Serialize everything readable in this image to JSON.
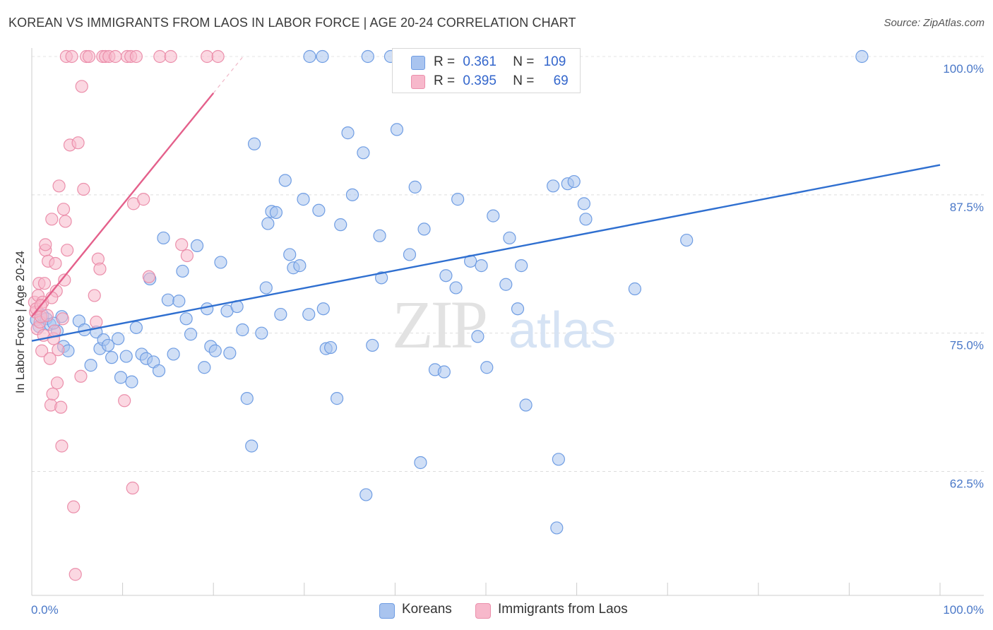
{
  "header": {
    "title": "KOREAN VS IMMIGRANTS FROM LAOS IN LABOR FORCE | AGE 20-24 CORRELATION CHART",
    "source": "Source: ZipAtlas.com"
  },
  "watermark": {
    "zip": "ZIP",
    "atlas": "atlas"
  },
  "legend_stats": [
    {
      "r_label": "R =",
      "r_value": "0.361",
      "n_label": "N =",
      "n_value": "109",
      "color": "#a9c4ef"
    },
    {
      "r_label": "R =",
      "r_value": "0.395",
      "n_label": "N =",
      "n_value": "69",
      "color": "#f7b8cb"
    }
  ],
  "chart_data": {
    "type": "scatter",
    "ylabel": "In Labor Force | Age 20-24",
    "xlim": [
      0,
      100
    ],
    "ylim": [
      51.3,
      100
    ],
    "x_tick_labels": [
      "0.0%",
      "100.0%"
    ],
    "y_ticks": [
      100,
      87.5,
      75,
      62.5
    ],
    "y_tick_labels": [
      "100.0%",
      "87.5%",
      "75.0%",
      "62.5%"
    ],
    "grid": true,
    "legend_placement": "bottom",
    "series": [
      {
        "name": "Koreans",
        "color": "#6f9de3",
        "fill": "#a9c4ef",
        "trend": {
          "x0": 0,
          "y0": 74.3,
          "x1": 100,
          "y1": 90.2
        },
        "points": [
          [
            0.5,
            76.2
          ],
          [
            0.8,
            75.6
          ],
          [
            1.2,
            76.6
          ],
          [
            1.6,
            76.3
          ],
          [
            2,
            75.8
          ],
          [
            2.8,
            75.2
          ],
          [
            3.5,
            73.8
          ],
          [
            4,
            73.4
          ],
          [
            5.2,
            76.1
          ],
          [
            5.8,
            75.3
          ],
          [
            6.5,
            72.1
          ],
          [
            7.1,
            75.1
          ],
          [
            7.5,
            73.6
          ],
          [
            7.9,
            74.4
          ],
          [
            8.4,
            73.9
          ],
          [
            8.8,
            72.8
          ],
          [
            9.5,
            74.5
          ],
          [
            9.8,
            71
          ],
          [
            10.4,
            72.9
          ],
          [
            11,
            70.6
          ],
          [
            11.5,
            75.5
          ],
          [
            12.1,
            73.1
          ],
          [
            12.6,
            72.7
          ],
          [
            13,
            79.9
          ],
          [
            13.4,
            72.4
          ],
          [
            14,
            71.6
          ],
          [
            14.5,
            83.6
          ],
          [
            15,
            78
          ],
          [
            15.6,
            73.1
          ],
          [
            16.2,
            77.9
          ],
          [
            16.6,
            80.6
          ],
          [
            17,
            76.3
          ],
          [
            17.5,
            74.9
          ],
          [
            18.2,
            82.9
          ],
          [
            19,
            71.9
          ],
          [
            19.3,
            77.2
          ],
          [
            19.7,
            73.8
          ],
          [
            20.2,
            73.4
          ],
          [
            20.8,
            81.4
          ],
          [
            21.5,
            77
          ],
          [
            21.8,
            73.2
          ],
          [
            22.6,
            77.4
          ],
          [
            23.2,
            75.3
          ],
          [
            23.7,
            69.1
          ],
          [
            24.2,
            64.8
          ],
          [
            24.5,
            92.1
          ],
          [
            25.3,
            75
          ],
          [
            25.8,
            79.1
          ],
          [
            26,
            84.9
          ],
          [
            26.4,
            86
          ],
          [
            26.9,
            85.9
          ],
          [
            27.4,
            76.7
          ],
          [
            27.9,
            88.8
          ],
          [
            28.4,
            82.1
          ],
          [
            28.8,
            80.9
          ],
          [
            29.5,
            81.1
          ],
          [
            29.9,
            87.1
          ],
          [
            30.5,
            76.7
          ],
          [
            31.6,
            86.1
          ],
          [
            32.1,
            77.2
          ],
          [
            32.4,
            73.6
          ],
          [
            32.9,
            73.7
          ],
          [
            33.6,
            69.1
          ],
          [
            34,
            84.8
          ],
          [
            34.8,
            93.1
          ],
          [
            35.3,
            87.5
          ],
          [
            36.5,
            91.3
          ],
          [
            36.8,
            60.4
          ],
          [
            37.5,
            73.9
          ],
          [
            38.3,
            83.8
          ],
          [
            38.5,
            80
          ],
          [
            39.5,
            100
          ],
          [
            40.2,
            93.4
          ],
          [
            41.1,
            100
          ],
          [
            41.6,
            82.1
          ],
          [
            42.2,
            88.2
          ],
          [
            42.8,
            63.3
          ],
          [
            43.2,
            84.4
          ],
          [
            44.4,
            71.7
          ],
          [
            45.4,
            71.5
          ],
          [
            45.6,
            80.2
          ],
          [
            46.7,
            79.1
          ],
          [
            46.9,
            87.1
          ],
          [
            48.3,
            81.5
          ],
          [
            49.1,
            74.7
          ],
          [
            49.5,
            81.1
          ],
          [
            50.1,
            71.9
          ],
          [
            50.8,
            85.6
          ],
          [
            51.3,
            100
          ],
          [
            52.2,
            79.4
          ],
          [
            52.6,
            83.6
          ],
          [
            53.5,
            77.2
          ],
          [
            53.9,
            81.1
          ],
          [
            54.4,
            68.5
          ],
          [
            57.4,
            88.3
          ],
          [
            57.8,
            57.4
          ],
          [
            58,
            63.6
          ],
          [
            59,
            88.5
          ],
          [
            59.7,
            88.7
          ],
          [
            60.8,
            86.7
          ],
          [
            61,
            85.3
          ],
          [
            66.4,
            79
          ],
          [
            72.1,
            83.4
          ],
          [
            91.4,
            100
          ],
          [
            32,
            100
          ],
          [
            30.6,
            100
          ],
          [
            37,
            100
          ],
          [
            3.3,
            76.5
          ],
          [
            2.4,
            75.9
          ]
        ]
      },
      {
        "name": "Immigrants from Laos",
        "color": "#eb8fab",
        "fill": "#f7b8cb",
        "trend": {
          "x0": 0,
          "y0": 76.5,
          "x1": 20,
          "y1": 96.7
        },
        "points": [
          [
            0.3,
            77.8
          ],
          [
            0.4,
            76.9
          ],
          [
            0.5,
            77.2
          ],
          [
            0.6,
            75.4
          ],
          [
            0.7,
            78.4
          ],
          [
            0.8,
            79.5
          ],
          [
            0.9,
            76
          ],
          [
            1,
            76.5
          ],
          [
            1.1,
            73.4
          ],
          [
            1.2,
            77.8
          ],
          [
            1.3,
            74.8
          ],
          [
            1.4,
            79.5
          ],
          [
            1.5,
            82.5
          ],
          [
            1.5,
            83
          ],
          [
            1.7,
            76.6
          ],
          [
            1.8,
            81.5
          ],
          [
            2,
            72.7
          ],
          [
            2.1,
            68.5
          ],
          [
            2.2,
            85.3
          ],
          [
            2.3,
            69.5
          ],
          [
            2.4,
            74.5
          ],
          [
            2.5,
            75.2
          ],
          [
            2.6,
            81.3
          ],
          [
            2.7,
            78.8
          ],
          [
            2.8,
            70.5
          ],
          [
            2.9,
            73.5
          ],
          [
            3,
            88.3
          ],
          [
            3.2,
            68.3
          ],
          [
            3.3,
            64.8
          ],
          [
            3.5,
            86.2
          ],
          [
            3.6,
            79.8
          ],
          [
            3.7,
            85.1
          ],
          [
            3.8,
            100
          ],
          [
            3.9,
            82.5
          ],
          [
            4.2,
            92
          ],
          [
            4.4,
            100
          ],
          [
            4.6,
            59.3
          ],
          [
            4.8,
            53.2
          ],
          [
            5.1,
            92.2
          ],
          [
            5.4,
            71.1
          ],
          [
            5.5,
            97.3
          ],
          [
            5.7,
            88
          ],
          [
            6,
            100
          ],
          [
            6.3,
            100
          ],
          [
            6.9,
            78.4
          ],
          [
            7.1,
            76
          ],
          [
            7.3,
            81.7
          ],
          [
            7.5,
            80.8
          ],
          [
            7.8,
            100
          ],
          [
            8.1,
            100
          ],
          [
            8.5,
            100
          ],
          [
            9.2,
            100
          ],
          [
            10.2,
            68.9
          ],
          [
            10.5,
            100
          ],
          [
            10.9,
            100
          ],
          [
            11.1,
            61
          ],
          [
            11.2,
            86.7
          ],
          [
            11.5,
            100
          ],
          [
            12.3,
            87.1
          ],
          [
            12.9,
            80.1
          ],
          [
            14.1,
            100
          ],
          [
            15.3,
            100
          ],
          [
            16.5,
            83
          ],
          [
            17.1,
            82
          ],
          [
            19.3,
            100
          ],
          [
            20.5,
            100
          ],
          [
            1,
            77.5
          ],
          [
            2.2,
            78.2
          ],
          [
            3.4,
            76.3
          ]
        ]
      }
    ]
  }
}
